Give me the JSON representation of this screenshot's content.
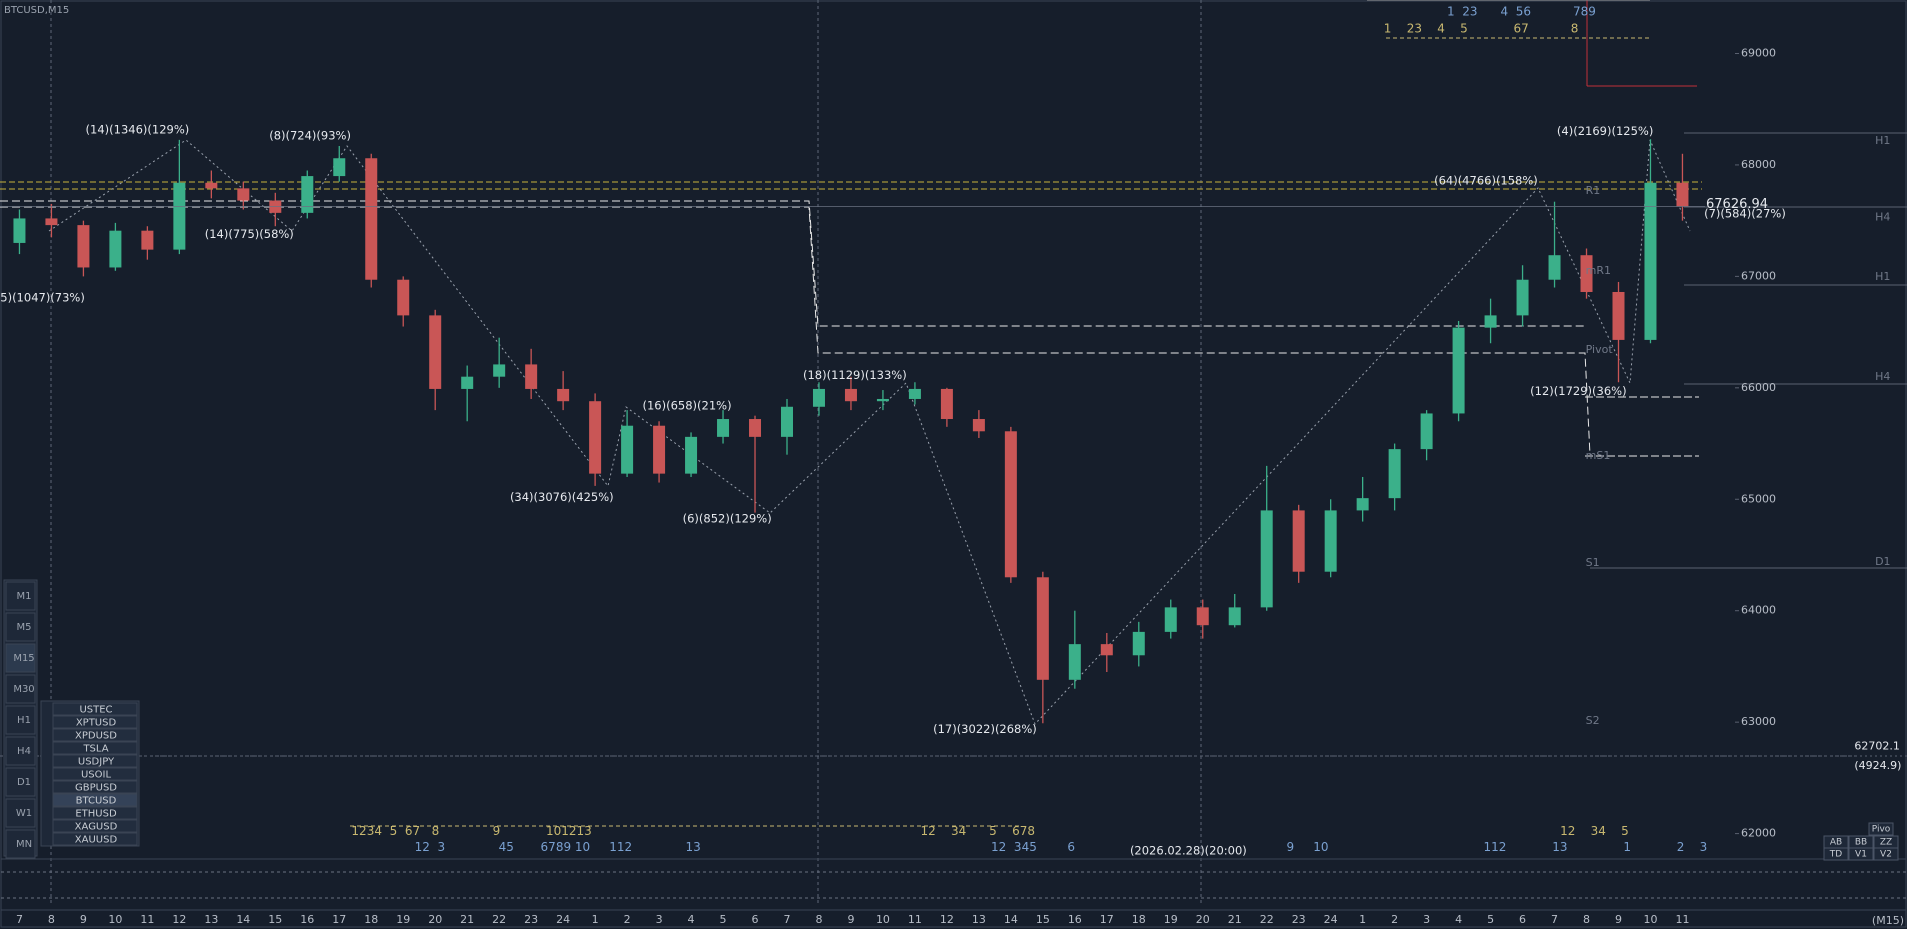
{
  "chart_data": {
    "type": "candlestick",
    "title": "BTCUSD,M15",
    "timeframe_label": "(M15)",
    "categories": [
      "7",
      "8",
      "9",
      "10",
      "11",
      "12",
      "13",
      "14",
      "15",
      "16",
      "17",
      "18",
      "19",
      "20",
      "21",
      "22",
      "23",
      "24",
      "1",
      "2",
      "3",
      "4",
      "5",
      "6",
      "7",
      "8",
      "9",
      "10",
      "11",
      "12",
      "13",
      "14",
      "15",
      "16",
      "17",
      "18",
      "19",
      "20",
      "21",
      "22",
      "23",
      "24",
      "1",
      "2",
      "3",
      "4",
      "5",
      "6",
      "7",
      "8",
      "9",
      "10",
      "11"
    ],
    "open": [
      67300,
      67520,
      67460,
      67080,
      67410,
      67240,
      67840,
      67790,
      67680,
      67570,
      67900,
      68060,
      66970,
      66650,
      65990,
      66100,
      66210,
      65990,
      65880,
      65230,
      65660,
      65230,
      65560,
      65720,
      65560,
      65830,
      65990,
      65880,
      65900,
      65990,
      65720,
      65610,
      64300,
      63380,
      63700,
      63600,
      63810,
      64030,
      63870,
      64030,
      64900,
      64350,
      64900,
      65010,
      65450,
      65770,
      66540,
      66650,
      66970,
      67190,
      66860,
      66430,
      67840
    ],
    "high": [
      67600,
      67650,
      67500,
      67480,
      67450,
      68225,
      67950,
      67850,
      67750,
      67950,
      68170,
      68100,
      67000,
      66700,
      66200,
      66450,
      66350,
      66150,
      65950,
      65800,
      65700,
      65600,
      65800,
      65750,
      65900,
      66050,
      66100,
      65980,
      66050,
      66000,
      65800,
      65650,
      64350,
      64000,
      63800,
      63900,
      64100,
      64100,
      64150,
      65300,
      64950,
      65000,
      65200,
      65500,
      65800,
      66600,
      66800,
      67100,
      67670,
      67250,
      66950,
      68230,
      68100
    ],
    "low": [
      67200,
      67350,
      67000,
      67050,
      67150,
      67200,
      67700,
      67600,
      67450,
      67520,
      67850,
      66900,
      66550,
      65800,
      65700,
      66000,
      65900,
      65800,
      65120,
      65200,
      65150,
      65200,
      65500,
      64880,
      65400,
      65750,
      65800,
      65800,
      65850,
      65650,
      65550,
      64250,
      62990,
      63300,
      63450,
      63500,
      63750,
      63750,
      63850,
      64000,
      64250,
      64300,
      64800,
      64900,
      65350,
      65700,
      66400,
      66550,
      66900,
      66800,
      66050,
      66400,
      67500
    ],
    "close": [
      67520,
      67460,
      67080,
      67410,
      67240,
      67840,
      67790,
      67680,
      67570,
      67900,
      68060,
      66970,
      66650,
      65990,
      66100,
      66210,
      65990,
      65880,
      65230,
      65660,
      65230,
      65560,
      65720,
      65560,
      65830,
      65990,
      65880,
      65900,
      65990,
      65720,
      65610,
      64300,
      63380,
      63700,
      63600,
      63810,
      64030,
      63870,
      64030,
      64900,
      64350,
      64900,
      65010,
      65450,
      65770,
      66540,
      66650,
      66970,
      67190,
      66860,
      66430,
      67840,
      67626.94
    ],
    "up_color": "#3bb08a",
    "down_color": "#c95656",
    "ylim": [
      61790,
      69480
    ],
    "yticks": [
      62000,
      63000,
      64000,
      65000,
      66000,
      67000,
      68000,
      69000
    ],
    "grid": false
  },
  "annotations": [
    "(14)(1346)(129%)",
    "(8)(724)(93%)",
    "(14)(775)(58%)",
    "5)(1047)(73%)",
    "(34)(3076)(425%)",
    "(16)(658)(21%)",
    "(6)(852)(129%)",
    "(18)(1129)(133%)",
    "(17)(3022)(268%)",
    "(64)(4766)(158%)",
    "(4)(2169)(125%)",
    "(12)(1729)(36%)",
    "(7)(584)(27%)",
    "(2026.02.28)",
    "(20:00)"
  ],
  "levels": [
    "R1",
    "mR1",
    "Pivot",
    "mS1",
    "S1",
    "S2",
    "H1",
    "H4",
    "H1",
    "H4",
    "D1",
    "62702.1",
    "(4924.9)"
  ],
  "wave_labels": [
    "1  23      4  56           789",
    "1    23    4    5            67           8",
    "1234  5  67   8              9            101213",
    "12  3              45       6789 10     112              13",
    "12    34      5    678",
    "12  345        6",
    "9     10",
    "112            13",
    "12    34    5",
    "1            2    3"
  ],
  "timeframes": [
    "M1",
    "M5",
    "M15",
    "M30",
    "H1",
    "H4",
    "D1",
    "W1",
    "MN"
  ],
  "symbols": [
    "USTEC",
    "XPTUSD",
    "XPDUSD",
    "TSLA",
    "USDJPY",
    "USOIL",
    "GBPUSD",
    "BTCUSD",
    "ETHUSD",
    "XAGUSD",
    "XAUUSD"
  ],
  "toolbar": [
    "Pivo",
    "AB",
    "BB",
    "ZZ",
    "TD",
    "V1",
    "V2"
  ]
}
